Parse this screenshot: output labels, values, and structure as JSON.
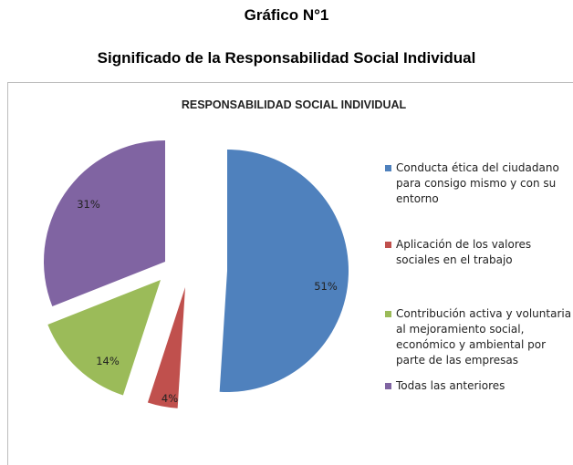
{
  "document": {
    "title_line_1": "Gráfico N°1",
    "title_line_2": "Significado de la Responsabilidad Social Individual"
  },
  "chart_data": {
    "type": "pie",
    "title": "RESPONSABILIDAD SOCIAL INDIVIDUAL",
    "exploded": true,
    "legend_position": "right",
    "slices": [
      {
        "label": "Conducta ética del ciudadano\npara consigo mismo y con su\nentorno",
        "value": 51,
        "display": "51%",
        "color": "#4F81BD"
      },
      {
        "label": "Aplicación de los valores\nsociales en el trabajo",
        "value": 4,
        "display": "4%",
        "color": "#C0504D"
      },
      {
        "label": "Contribución activa y voluntaria\nal mejoramiento social,\neconómico y ambiental por\nparte de las empresas",
        "value": 14,
        "display": "14%",
        "color": "#9BBB59"
      },
      {
        "label": "Todas las anteriores",
        "value": 31,
        "display": "31%",
        "color": "#8064A2"
      }
    ]
  }
}
